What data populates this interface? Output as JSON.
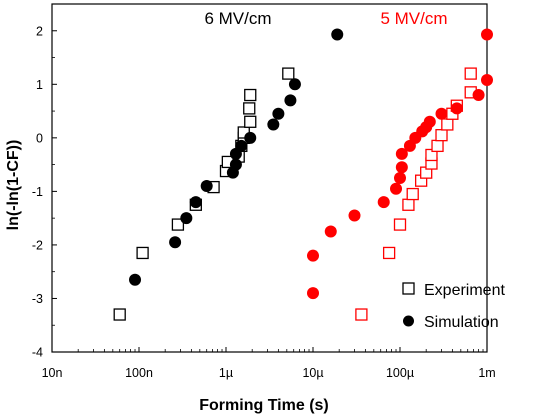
{
  "chart_data": {
    "type": "scatter",
    "xlabel": "Forming Time (s)",
    "ylabel": "ln(-ln(1-CF))",
    "xscale": "log",
    "xlim": [
      1e-08,
      0.001
    ],
    "ylim": [
      -4,
      2.5
    ],
    "x_ticks": [
      1e-08,
      1e-07,
      1e-06,
      1e-05,
      0.0001,
      0.001
    ],
    "x_tick_labels": [
      "10n",
      "100n",
      "1µ",
      "10µ",
      "100µ",
      "1m"
    ],
    "y_ticks": [
      -4,
      -3,
      -2,
      -1,
      0,
      1,
      2
    ],
    "y_tick_labels": [
      "-4",
      "-3",
      "-2",
      "-1",
      "0",
      "1",
      "2"
    ],
    "grid": false,
    "legend_position": "bottom-right",
    "legend": [
      {
        "label": "Experiment",
        "marker": "open-square"
      },
      {
        "label": "Simulation",
        "marker": "filled-circle"
      }
    ],
    "annotations": [
      {
        "text": "6 MV/cm",
        "color": "#000000"
      },
      {
        "text": "5 MV/cm",
        "color": "#ff0000"
      }
    ],
    "series": [
      {
        "legend": "Experiment",
        "group": "6 MV/cm",
        "color": "#000000",
        "marker": "open-square",
        "points": [
          [
            6e-08,
            -3.3
          ],
          [
            1.1e-07,
            -2.15
          ],
          [
            2.8e-07,
            -1.62
          ],
          [
            4.5e-07,
            -1.25
          ],
          [
            7.2e-07,
            -0.92
          ],
          [
            1e-06,
            -0.62
          ],
          [
            1.05e-06,
            -0.45
          ],
          [
            1.4e-06,
            -0.35
          ],
          [
            1.5e-06,
            -0.15
          ],
          [
            1.6e-06,
            0.0
          ],
          [
            1.6e-06,
            0.1
          ],
          [
            1.9e-06,
            0.3
          ],
          [
            1.85e-06,
            0.55
          ],
          [
            1.9e-06,
            0.8
          ],
          [
            5.2e-06,
            1.2
          ]
        ]
      },
      {
        "legend": "Simulation",
        "group": "6 MV/cm",
        "color": "#000000",
        "marker": "filled-circle",
        "points": [
          [
            9e-08,
            -2.65
          ],
          [
            2.6e-07,
            -1.95
          ],
          [
            3.5e-07,
            -1.5
          ],
          [
            4.5e-07,
            -1.2
          ],
          [
            6e-07,
            -0.9
          ],
          [
            1.2e-06,
            -0.65
          ],
          [
            1.3e-06,
            -0.5
          ],
          [
            1.3e-06,
            -0.3
          ],
          [
            1.5e-06,
            -0.15
          ],
          [
            1.9e-06,
            0.0
          ],
          [
            3.5e-06,
            0.25
          ],
          [
            4e-06,
            0.45
          ],
          [
            5.5e-06,
            0.7
          ],
          [
            6.2e-06,
            1.0
          ],
          [
            1.9e-05,
            1.93
          ]
        ]
      },
      {
        "legend": "Experiment",
        "group": "5 MV/cm",
        "color": "#ff0000",
        "marker": "open-square",
        "points": [
          [
            3.6e-05,
            -3.3
          ],
          [
            7.5e-05,
            -2.15
          ],
          [
            0.0001,
            -1.62
          ],
          [
            0.000125,
            -1.25
          ],
          [
            0.00014,
            -1.05
          ],
          [
            0.000175,
            -0.8
          ],
          [
            0.0002,
            -0.65
          ],
          [
            0.00023,
            -0.48
          ],
          [
            0.00023,
            -0.32
          ],
          [
            0.00027,
            -0.15
          ],
          [
            0.0003,
            0.05
          ],
          [
            0.00035,
            0.25
          ],
          [
            0.0004,
            0.45
          ],
          [
            0.00045,
            0.6
          ],
          [
            0.00065,
            0.85
          ],
          [
            0.00065,
            1.2
          ]
        ]
      },
      {
        "legend": "Simulation",
        "group": "5 MV/cm",
        "color": "#ff0000",
        "marker": "filled-circle",
        "points": [
          [
            1e-05,
            -2.9
          ],
          [
            1e-05,
            -2.2
          ],
          [
            1.6e-05,
            -1.75
          ],
          [
            3e-05,
            -1.45
          ],
          [
            6.5e-05,
            -1.2
          ],
          [
            9e-05,
            -0.95
          ],
          [
            0.0001,
            -0.75
          ],
          [
            0.000105,
            -0.55
          ],
          [
            0.000105,
            -0.3
          ],
          [
            0.00013,
            -0.15
          ],
          [
            0.00015,
            0.0
          ],
          [
            0.00018,
            0.12
          ],
          [
            0.0002,
            0.2
          ],
          [
            0.00022,
            0.3
          ],
          [
            0.0003,
            0.45
          ],
          [
            0.00045,
            0.55
          ],
          [
            0.0008,
            0.8
          ],
          [
            0.001,
            1.08
          ],
          [
            0.001,
            1.93
          ]
        ]
      }
    ]
  }
}
